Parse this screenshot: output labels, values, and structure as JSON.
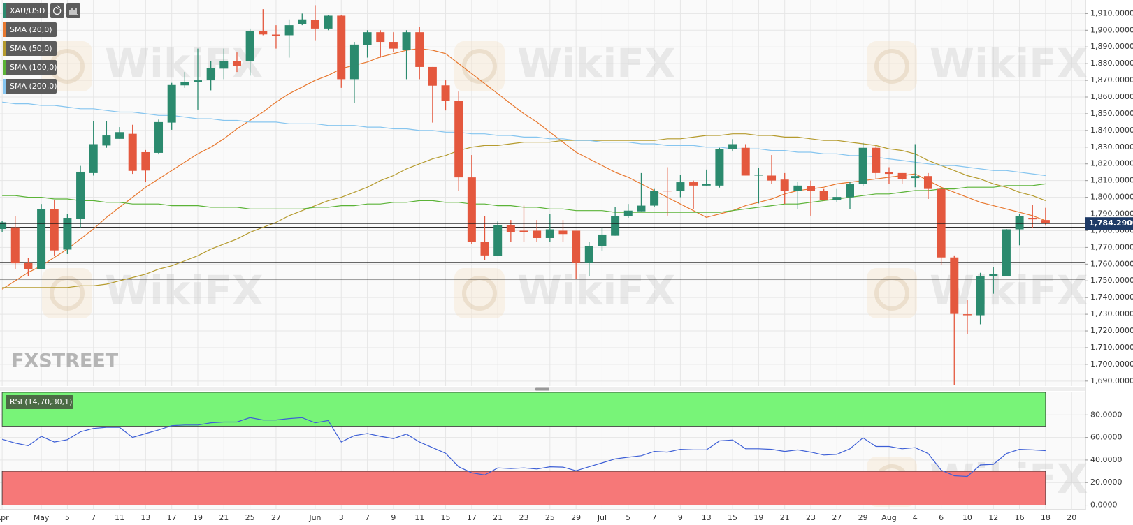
{
  "chart_data": {
    "type": "candlestick",
    "symbol": "XAU/USD",
    "watermark": "WikiFX",
    "logo": "FXSTREET",
    "legend": "upper left",
    "grid": true,
    "up_color": "#2b8a6e",
    "down_color": "#e4583e",
    "categories": [
      "Apr",
      null,
      null,
      "May",
      null,
      "5",
      null,
      "7",
      null,
      "11",
      null,
      "13",
      null,
      "17",
      null,
      "19",
      null,
      "21",
      null,
      "25",
      null,
      "27",
      null,
      null,
      "Jun",
      null,
      "3",
      null,
      "7",
      null,
      "9",
      null,
      "11",
      null,
      "15",
      null,
      "17",
      null,
      "21",
      null,
      "23",
      null,
      "25",
      null,
      "29",
      null,
      "Jul",
      null,
      "5",
      null,
      "7",
      null,
      "9",
      null,
      "13",
      null,
      "15",
      null,
      "19",
      null,
      "21",
      null,
      "23",
      null,
      "27",
      null,
      "29",
      null,
      "Aug",
      null,
      "4",
      null,
      "6",
      null,
      "10",
      null,
      "12",
      null,
      "16",
      null,
      "18",
      null,
      "20"
    ],
    "open": [
      1781,
      1782,
      1761,
      1757,
      1793,
      1768.7,
      1787,
      1814.5,
      1831,
      1835,
      1838,
      1827,
      1826.6,
      1844.7,
      1867,
      1869,
      1870,
      1877,
      1881.5,
      1881.5,
      1899.5,
      1897.4,
      1897,
      1903.5,
      1906,
      1901,
      1908.7,
      1870.7,
      1891,
      1898.8,
      1893,
      1888,
      1898.8,
      1878,
      1867,
      1857.7,
      1811.9,
      1773.4,
      1764.8,
      1783.4,
      1780,
      1780,
      1775.6,
      1780,
      1780,
      1761,
      1771,
      1777,
      1788.6,
      1791.6,
      1795,
      1804,
      1803.6,
      1809,
      1807,
      1807,
      1828.7,
      1829.6,
      1813,
      1813,
      1810.6,
      1804,
      1806.7,
      1803.6,
      1798.5,
      1800,
      1808,
      1829.6,
      1815,
      1814.5,
      1811.5,
      1812.7,
      1805,
      1764,
      1730,
      1729.4,
      1752.7,
      1753,
      1780.8,
      1787.7,
      1786.4,
      null,
      null
    ],
    "high": [
      1786,
      1788.6,
      1763.5,
      1796,
      1798.5,
      1789.8,
      1818.8,
      1845.6,
      1845.6,
      1842,
      1843.4,
      1828.3,
      1846.5,
      1868.5,
      1875,
      1889,
      1881.5,
      1889,
      1886.7,
      1901,
      1912.6,
      1903,
      1906.5,
      1910,
      1915,
      1909,
      1909,
      1893,
      1900,
      1900,
      1898.8,
      1900,
      1902,
      1878,
      1870,
      1863.3,
      1825.3,
      1788.6,
      1785.5,
      1786.4,
      1795,
      1786.4,
      1790,
      1786.4,
      1780,
      1773.4,
      1782,
      1794,
      1796,
      1814.5,
      1805,
      1818,
      1813.6,
      1810,
      1816.6,
      1829.6,
      1834.8,
      1831.8,
      1817.5,
      1825.3,
      1814.5,
      1809.3,
      1810,
      1805,
      1805,
      1809,
      1832.6,
      1831,
      1818,
      1814.5,
      1831.8,
      1814.5,
      1805,
      1765.2,
      1738.8,
      1754.8,
      1758.3,
      1781,
      1790,
      1795.4,
      1793.7,
      null,
      null
    ],
    "low": [
      1779,
      1757,
      1752.7,
      1757,
      1764.8,
      1766,
      1781.6,
      1813,
      1829.6,
      1835,
      1814,
      1809,
      1825.7,
      1840.4,
      1865.5,
      1852.5,
      1864,
      1870.7,
      1875,
      1872.8,
      1897,
      1889,
      1883.6,
      1903,
      1893.6,
      1900,
      1865.5,
      1856.4,
      1883.6,
      1883.6,
      1887,
      1870.7,
      1870.7,
      1844.7,
      1852,
      1803.7,
      1772.1,
      1762.6,
      1764.8,
      1773.4,
      1773.4,
      1773.4,
      1773.4,
      1773.4,
      1751,
      1752.7,
      1768,
      1777,
      1787.7,
      1791.6,
      1794,
      1789,
      1800,
      1793,
      1806.7,
      1805.8,
      1827.4,
      1813,
      1796.3,
      1808,
      1796,
      1793,
      1789,
      1798,
      1797,
      1793,
      1806.7,
      1811,
      1808,
      1808,
      1806,
      1799,
      1759.6,
      1687.8,
      1718,
      1724,
      1742.3,
      1752.7,
      1771.3,
      1781.6,
      1783,
      null,
      null
    ],
    "close": [
      1785,
      1760.5,
      1757,
      1792.9,
      1768.2,
      1787.7,
      1815.3,
      1831.8,
      1837,
      1839,
      1815.8,
      1816,
      1845,
      1867.2,
      1869,
      1870,
      1877.2,
      1881.5,
      1878.5,
      1899.6,
      1897.5,
      1896.6,
      1903,
      1906.5,
      1901,
      1908.7,
      1870.7,
      1891.4,
      1898.8,
      1893,
      1889,
      1898.8,
      1878,
      1866.8,
      1857.7,
      1811.9,
      1773.4,
      1765.2,
      1783.4,
      1779,
      1779,
      1775.6,
      1780.8,
      1778,
      1761,
      1771,
      1777.7,
      1788.6,
      1792,
      1795,
      1804,
      1803.6,
      1809,
      1807,
      1808,
      1828.7,
      1831.8,
      1813,
      1813.6,
      1810,
      1803.6,
      1807,
      1803.6,
      1798.5,
      1800.2,
      1808,
      1829.6,
      1814.5,
      1814,
      1811,
      1812.7,
      1805,
      1764,
      1730.2,
      1729.4,
      1752.7,
      1754,
      1780.8,
      1788.6,
      1786.8,
      1784.29,
      null,
      null
    ],
    "series": [
      {
        "name": "SMA (20,0)",
        "color": "#e8782f",
        "values": [
          1745,
          1750,
          1755,
          1759,
          1764,
          1769,
          1775,
          1781,
          1788,
          1794,
          1800,
          1806,
          1811,
          1816,
          1821,
          1826,
          1830,
          1835,
          1841,
          1846,
          1851,
          1857,
          1862,
          1866,
          1870,
          1873,
          1877,
          1879,
          1881,
          1884,
          1886,
          1888,
          1889,
          1888,
          1886,
          1880,
          1874,
          1868,
          1862,
          1856,
          1850,
          1845,
          1839,
          1833,
          1827,
          1823,
          1819,
          1815,
          1812,
          1808,
          1804,
          1800,
          1796,
          1792,
          1788,
          1790,
          1792,
          1795,
          1797,
          1799,
          1802,
          1804,
          1805,
          1806,
          1808,
          1809,
          1810,
          1811,
          1812,
          1813,
          1814,
          1810,
          1806,
          1803,
          1800,
          1797,
          1795,
          1793,
          1791,
          1789,
          1786,
          null,
          null
        ]
      },
      {
        "name": "SMA (50,0)",
        "color": "#b59b2e",
        "values": [
          1746,
          1746,
          1746,
          1746,
          1746,
          1746,
          1747,
          1747,
          1748,
          1750,
          1752,
          1754,
          1757,
          1759,
          1762,
          1765,
          1769,
          1772,
          1775,
          1779,
          1782,
          1785,
          1789,
          1792,
          1795,
          1798,
          1800,
          1803,
          1806,
          1810,
          1813,
          1817,
          1820,
          1823,
          1825,
          1828,
          1830,
          1831,
          1831,
          1832,
          1833,
          1833,
          1833,
          1834,
          1834,
          1834,
          1834,
          1834,
          1834,
          1834,
          1834,
          1835,
          1835,
          1836,
          1837,
          1837,
          1838,
          1838,
          1837,
          1837,
          1836,
          1836,
          1835,
          1834,
          1834,
          1833,
          1832,
          1831,
          1829,
          1828,
          1826,
          1822,
          1819,
          1816,
          1813,
          1811,
          1808,
          1806,
          1803,
          1801,
          1798,
          null,
          null
        ]
      },
      {
        "name": "SMA (100,0)",
        "color": "#5bb337",
        "values": [
          1801,
          1801,
          1800,
          1800,
          1799,
          1799,
          1798,
          1798,
          1797,
          1797,
          1796,
          1796,
          1796,
          1795,
          1795,
          1795,
          1794,
          1794,
          1794,
          1793,
          1793,
          1793,
          1793,
          1793,
          1794,
          1794,
          1795,
          1795,
          1796,
          1796,
          1797,
          1797,
          1798,
          1798,
          1797,
          1797,
          1796,
          1796,
          1795,
          1795,
          1794,
          1794,
          1793,
          1793,
          1792,
          1792,
          1792,
          1791,
          1791,
          1791,
          1791,
          1791,
          1791,
          1791,
          1791,
          1791,
          1792,
          1793,
          1794,
          1795,
          1796,
          1796,
          1797,
          1798,
          1799,
          1800,
          1801,
          1802,
          1802,
          1803,
          1804,
          1804,
          1805,
          1805,
          1806,
          1806,
          1806,
          1807,
          1807,
          1807,
          1808,
          null,
          null
        ]
      },
      {
        "name": "SMA (200,0)",
        "color": "#86c5ef",
        "values": [
          1857,
          1856,
          1856,
          1855,
          1855,
          1854,
          1853,
          1853,
          1852,
          1851,
          1851,
          1850,
          1849,
          1849,
          1848,
          1847,
          1847,
          1846,
          1846,
          1845,
          1845,
          1845,
          1844,
          1844,
          1844,
          1843,
          1843,
          1843,
          1842,
          1842,
          1841,
          1841,
          1840,
          1840,
          1839,
          1839,
          1838,
          1838,
          1837,
          1837,
          1836,
          1836,
          1835,
          1835,
          1834,
          1834,
          1833,
          1833,
          1833,
          1832,
          1832,
          1831,
          1831,
          1831,
          1830,
          1830,
          1829,
          1829,
          1829,
          1828,
          1828,
          1827,
          1827,
          1826,
          1826,
          1825,
          1825,
          1824,
          1823,
          1822,
          1821,
          1820,
          1819,
          1819,
          1818,
          1817,
          1816,
          1816,
          1815,
          1814,
          1813,
          null,
          null
        ]
      }
    ],
    "levels": [
      1782,
      1761,
      1751
    ],
    "last_price": {
      "value": 1784.29,
      "label": "1,784.2900"
    },
    "ylim": [
      1687,
      1916
    ],
    "yticks": [
      {
        "value": 1690,
        "label": "1,690.0000"
      },
      {
        "value": 1700,
        "label": "1,700.0000"
      },
      {
        "value": 1710,
        "label": "1,710.0000"
      },
      {
        "value": 1720,
        "label": "1,720.0000"
      },
      {
        "value": 1730,
        "label": "1,730.0000"
      },
      {
        "value": 1740,
        "label": "1,740.0000"
      },
      {
        "value": 1750,
        "label": "1,750.0000"
      },
      {
        "value": 1760,
        "label": "1,760.0000"
      },
      {
        "value": 1770,
        "label": "1,770.0000"
      },
      {
        "value": 1780,
        "label": "1,780.0000"
      },
      {
        "value": 1790,
        "label": "1,790.0000"
      },
      {
        "value": 1800,
        "label": "1,800.0000"
      },
      {
        "value": 1810,
        "label": "1,810.0000"
      },
      {
        "value": 1820,
        "label": "1,820.0000"
      },
      {
        "value": 1830,
        "label": "1,830.0000"
      },
      {
        "value": 1840,
        "label": "1,840.0000"
      },
      {
        "value": 1850,
        "label": "1,850.0000"
      },
      {
        "value": 1860,
        "label": "1,860.0000"
      },
      {
        "value": 1870,
        "label": "1,870.0000"
      },
      {
        "value": 1880,
        "label": "1,880.0000"
      },
      {
        "value": 1890,
        "label": "1,890.0000"
      },
      {
        "value": 1900,
        "label": "1,900.0000"
      },
      {
        "value": 1910,
        "label": "1,910.0000"
      }
    ],
    "rsi": {
      "type": "line",
      "name": "RSI (14,70,30,1)",
      "color": "#3d5fd6",
      "values": [
        58.4,
        55,
        52.7,
        61,
        56,
        58,
        65,
        68,
        69,
        69,
        60,
        63.5,
        66.7,
        70.5,
        71,
        71,
        73,
        73.7,
        73.7,
        77.5,
        75.5,
        75.5,
        76.7,
        77.5,
        73,
        75,
        56,
        61.6,
        63.5,
        61,
        59,
        63,
        56,
        51,
        46,
        34,
        28.6,
        26.7,
        33,
        32.4,
        33,
        32,
        34,
        33.7,
        30.5,
        34,
        37.5,
        41,
        42.5,
        43.8,
        47.6,
        47,
        49.5,
        49,
        49,
        57,
        57.8,
        50,
        50,
        49.5,
        47.6,
        49,
        47,
        44.4,
        45,
        50,
        59.7,
        52,
        52,
        50,
        51,
        45.7,
        31,
        26,
        25.4,
        35.6,
        36.2,
        45.7,
        49.5,
        49,
        48.3,
        null,
        null
      ],
      "zones": [
        {
          "from": 70,
          "to": 100,
          "color": "#78f478"
        },
        {
          "from": 0,
          "to": 30,
          "color": "#f67878"
        }
      ],
      "ylim": [
        -4,
        100
      ],
      "yticks": [
        {
          "value": 0,
          "label": "0.0000"
        },
        {
          "value": 20,
          "label": "20.0000"
        },
        {
          "value": 40,
          "label": "40.0000"
        },
        {
          "value": 60,
          "label": "60.0000"
        },
        {
          "value": 80,
          "label": "80.0000"
        }
      ]
    }
  }
}
